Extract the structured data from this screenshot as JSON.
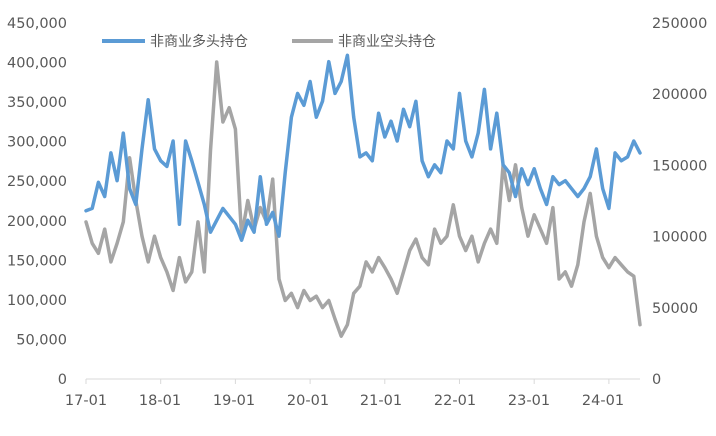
{
  "chart_data": {
    "type": "line",
    "title": "",
    "legend": {
      "position": "top-left"
    },
    "grid": false,
    "x_axis": {
      "type": "date",
      "range": [
        "2017-01",
        "2024-06"
      ],
      "tick_labels": [
        "17-01",
        "18-01",
        "19-01",
        "20-01",
        "21-01",
        "22-01",
        "23-01",
        "24-01"
      ]
    },
    "y_axis_left": {
      "range": [
        0,
        450000
      ],
      "tick_labels": [
        "0",
        "50,000",
        "100,000",
        "150,000",
        "200,000",
        "250,000",
        "300,000",
        "350,000",
        "400,000",
        "450,000"
      ]
    },
    "y_axis_right": {
      "range": [
        0,
        250000
      ],
      "tick_labels": [
        "0",
        "50000",
        "100000",
        "150000",
        "200000",
        "250000"
      ]
    },
    "series": [
      {
        "name": "非商业多头持仓",
        "axis": "left",
        "color": "#5B9BD5",
        "points": [
          [
            "2017-01",
            212000
          ],
          [
            "2017-02",
            215000
          ],
          [
            "2017-03",
            248000
          ],
          [
            "2017-04",
            230000
          ],
          [
            "2017-05",
            285000
          ],
          [
            "2017-06",
            250000
          ],
          [
            "2017-07",
            310000
          ],
          [
            "2017-08",
            240000
          ],
          [
            "2017-09",
            220000
          ],
          [
            "2017-10",
            290000
          ],
          [
            "2017-11",
            352000
          ],
          [
            "2017-12",
            290000
          ],
          [
            "2018-01",
            275000
          ],
          [
            "2018-02",
            268000
          ],
          [
            "2018-03",
            300000
          ],
          [
            "2018-04",
            195000
          ],
          [
            "2018-05",
            300000
          ],
          [
            "2018-06",
            275000
          ],
          [
            "2018-07",
            248000
          ],
          [
            "2018-08",
            220000
          ],
          [
            "2018-09",
            185000
          ],
          [
            "2018-10",
            200000
          ],
          [
            "2018-11",
            215000
          ],
          [
            "2018-12",
            205000
          ],
          [
            "2019-01",
            195000
          ],
          [
            "2019-02",
            175000
          ],
          [
            "2019-03",
            200000
          ],
          [
            "2019-04",
            185000
          ],
          [
            "2019-05",
            255000
          ],
          [
            "2019-06",
            195000
          ],
          [
            "2019-07",
            210000
          ],
          [
            "2019-08",
            180000
          ],
          [
            "2019-09",
            260000
          ],
          [
            "2019-10",
            330000
          ],
          [
            "2019-11",
            360000
          ],
          [
            "2019-12",
            345000
          ],
          [
            "2020-01",
            375000
          ],
          [
            "2020-02",
            330000
          ],
          [
            "2020-03",
            350000
          ],
          [
            "2020-04",
            400000
          ],
          [
            "2020-05",
            360000
          ],
          [
            "2020-06",
            375000
          ],
          [
            "2020-07",
            408000
          ],
          [
            "2020-08",
            330000
          ],
          [
            "2020-09",
            280000
          ],
          [
            "2020-10",
            285000
          ],
          [
            "2020-11",
            275000
          ],
          [
            "2020-12",
            335000
          ],
          [
            "2021-01",
            305000
          ],
          [
            "2021-02",
            325000
          ],
          [
            "2021-03",
            300000
          ],
          [
            "2021-04",
            340000
          ],
          [
            "2021-05",
            318000
          ],
          [
            "2021-06",
            350000
          ],
          [
            "2021-07",
            275000
          ],
          [
            "2021-08",
            255000
          ],
          [
            "2021-09",
            270000
          ],
          [
            "2021-10",
            260000
          ],
          [
            "2021-11",
            300000
          ],
          [
            "2021-12",
            290000
          ],
          [
            "2022-01",
            360000
          ],
          [
            "2022-02",
            300000
          ],
          [
            "2022-03",
            280000
          ],
          [
            "2022-04",
            310000
          ],
          [
            "2022-05",
            365000
          ],
          [
            "2022-06",
            290000
          ],
          [
            "2022-07",
            335000
          ],
          [
            "2022-08",
            270000
          ],
          [
            "2022-09",
            260000
          ],
          [
            "2022-10",
            230000
          ],
          [
            "2022-11",
            265000
          ],
          [
            "2022-12",
            245000
          ],
          [
            "2023-01",
            265000
          ],
          [
            "2023-02",
            240000
          ],
          [
            "2023-03",
            220000
          ],
          [
            "2023-04",
            255000
          ],
          [
            "2023-05",
            245000
          ],
          [
            "2023-06",
            250000
          ],
          [
            "2023-07",
            240000
          ],
          [
            "2023-08",
            230000
          ],
          [
            "2023-09",
            240000
          ],
          [
            "2023-10",
            255000
          ],
          [
            "2023-11",
            290000
          ],
          [
            "2023-12",
            240000
          ],
          [
            "2024-01",
            215000
          ],
          [
            "2024-02",
            285000
          ],
          [
            "2024-03",
            275000
          ],
          [
            "2024-04",
            280000
          ],
          [
            "2024-05",
            300000
          ],
          [
            "2024-06",
            285000
          ]
        ]
      },
      {
        "name": "非商业空头持仓",
        "axis": "right",
        "color": "#A5A5A5",
        "points": [
          [
            "2017-01",
            110000
          ],
          [
            "2017-02",
            95000
          ],
          [
            "2017-03",
            88000
          ],
          [
            "2017-04",
            105000
          ],
          [
            "2017-05",
            82000
          ],
          [
            "2017-06",
            95000
          ],
          [
            "2017-07",
            110000
          ],
          [
            "2017-08",
            155000
          ],
          [
            "2017-09",
            125000
          ],
          [
            "2017-10",
            100000
          ],
          [
            "2017-11",
            82000
          ],
          [
            "2017-12",
            100000
          ],
          [
            "2018-01",
            85000
          ],
          [
            "2018-02",
            75000
          ],
          [
            "2018-03",
            62000
          ],
          [
            "2018-04",
            85000
          ],
          [
            "2018-05",
            68000
          ],
          [
            "2018-06",
            75000
          ],
          [
            "2018-07",
            110000
          ],
          [
            "2018-08",
            75000
          ],
          [
            "2018-09",
            160000
          ],
          [
            "2018-10",
            222000
          ],
          [
            "2018-11",
            180000
          ],
          [
            "2018-12",
            190000
          ],
          [
            "2019-01",
            175000
          ],
          [
            "2019-02",
            100000
          ],
          [
            "2019-03",
            125000
          ],
          [
            "2019-04",
            105000
          ],
          [
            "2019-05",
            120000
          ],
          [
            "2019-06",
            110000
          ],
          [
            "2019-07",
            140000
          ],
          [
            "2019-08",
            70000
          ],
          [
            "2019-09",
            55000
          ],
          [
            "2019-10",
            60000
          ],
          [
            "2019-11",
            50000
          ],
          [
            "2019-12",
            62000
          ],
          [
            "2020-01",
            55000
          ],
          [
            "2020-02",
            58000
          ],
          [
            "2020-03",
            50000
          ],
          [
            "2020-04",
            55000
          ],
          [
            "2020-05",
            42000
          ],
          [
            "2020-06",
            30000
          ],
          [
            "2020-07",
            38000
          ],
          [
            "2020-08",
            60000
          ],
          [
            "2020-09",
            65000
          ],
          [
            "2020-10",
            82000
          ],
          [
            "2020-11",
            75000
          ],
          [
            "2020-12",
            85000
          ],
          [
            "2021-01",
            78000
          ],
          [
            "2021-02",
            70000
          ],
          [
            "2021-03",
            60000
          ],
          [
            "2021-04",
            75000
          ],
          [
            "2021-05",
            90000
          ],
          [
            "2021-06",
            98000
          ],
          [
            "2021-07",
            85000
          ],
          [
            "2021-08",
            80000
          ],
          [
            "2021-09",
            105000
          ],
          [
            "2021-10",
            95000
          ],
          [
            "2021-11",
            100000
          ],
          [
            "2021-12",
            122000
          ],
          [
            "2022-01",
            100000
          ],
          [
            "2022-02",
            90000
          ],
          [
            "2022-03",
            100000
          ],
          [
            "2022-04",
            82000
          ],
          [
            "2022-05",
            95000
          ],
          [
            "2022-06",
            105000
          ],
          [
            "2022-07",
            95000
          ],
          [
            "2022-08",
            150000
          ],
          [
            "2022-09",
            125000
          ],
          [
            "2022-10",
            150000
          ],
          [
            "2022-11",
            120000
          ],
          [
            "2022-12",
            100000
          ],
          [
            "2023-01",
            115000
          ],
          [
            "2023-02",
            105000
          ],
          [
            "2023-03",
            95000
          ],
          [
            "2023-04",
            120000
          ],
          [
            "2023-05",
            70000
          ],
          [
            "2023-06",
            75000
          ],
          [
            "2023-07",
            65000
          ],
          [
            "2023-08",
            80000
          ],
          [
            "2023-09",
            110000
          ],
          [
            "2023-10",
            130000
          ],
          [
            "2023-11",
            100000
          ],
          [
            "2023-12",
            85000
          ],
          [
            "2024-01",
            78000
          ],
          [
            "2024-02",
            85000
          ],
          [
            "2024-03",
            80000
          ],
          [
            "2024-04",
            75000
          ],
          [
            "2024-05",
            72000
          ],
          [
            "2024-06",
            38000
          ]
        ]
      }
    ]
  }
}
